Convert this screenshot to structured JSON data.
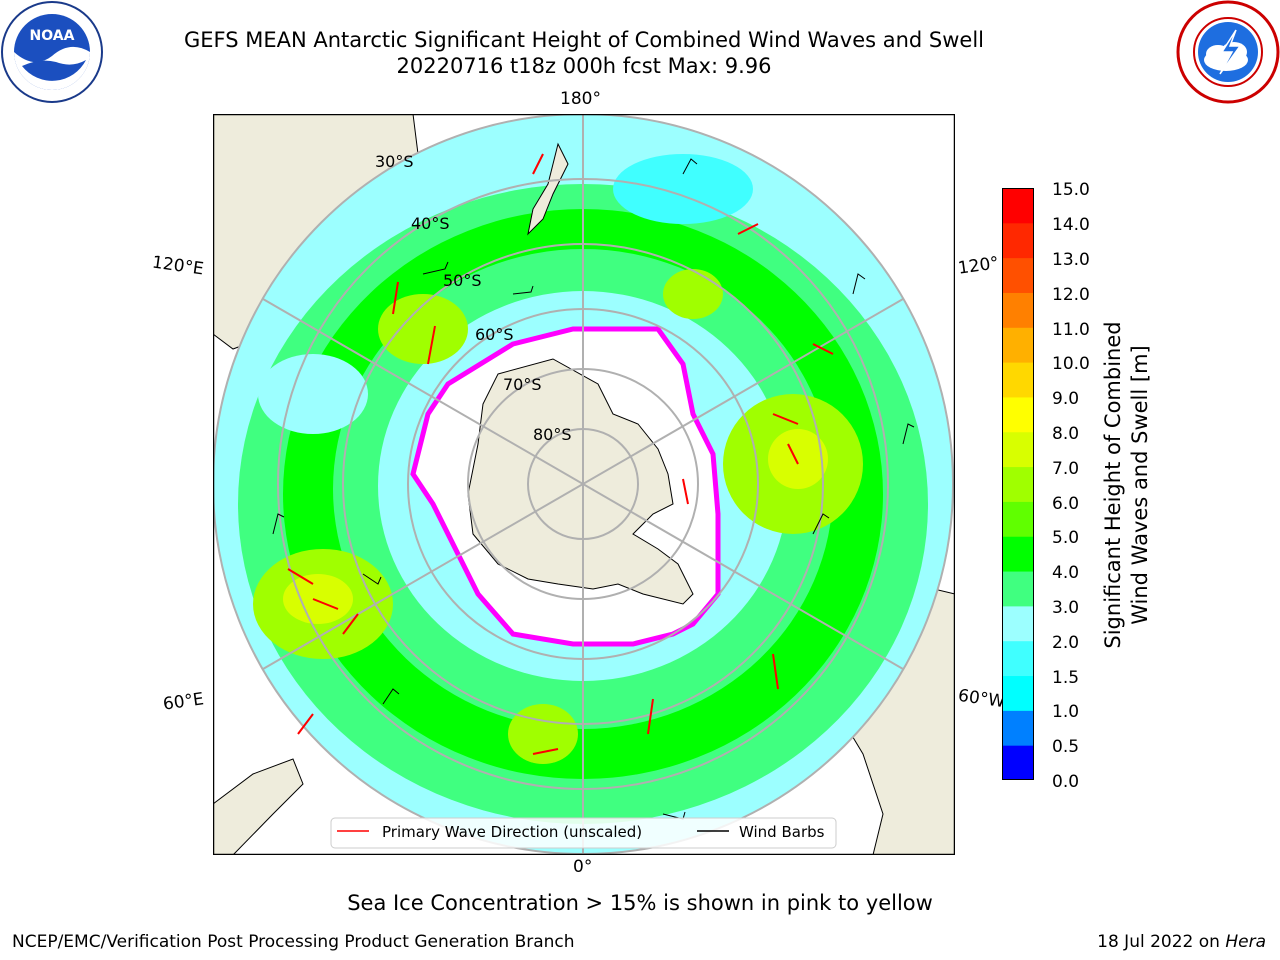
{
  "title_line1": "GEFS MEAN Antarctic Significant Height of Combined Wind Waves and Swell",
  "title_line2": "20220716 t18z 000h fcst   Max: 9.96",
  "longitude_labels": {
    "top": "180°",
    "bottom": "0°",
    "left_upper": "120°E",
    "left_lower": "60°E",
    "right_upper": "120°",
    "right_lower": "60°W"
  },
  "latitude_labels": [
    "30°S",
    "40°S",
    "50°S",
    "60°S",
    "70°S",
    "80°S"
  ],
  "legend": {
    "wave_direction": "Primary Wave Direction (unscaled)",
    "wind_barbs": "Wind Barbs",
    "wave_color": "#ff0000",
    "barb_color": "#000000"
  },
  "colorbar": {
    "label_line1": "Significant Height of Combined",
    "label_line2": "Wind Waves and Swell [m]",
    "ticks": [
      "15.0",
      "14.0",
      "13.0",
      "12.0",
      "11.0",
      "10.0",
      "9.0",
      "8.0",
      "7.0",
      "6.0",
      "5.0",
      "4.0",
      "3.0",
      "2.0",
      "1.5",
      "1.0",
      "0.5",
      "0.0"
    ],
    "colors_bottom_to_top": [
      "#0000ff",
      "#0080ff",
      "#00ffff",
      "#40ffff",
      "#9cffff",
      "#40ff80",
      "#00ff00",
      "#60ff00",
      "#a0ff00",
      "#d8ff00",
      "#ffff00",
      "#ffd800",
      "#ffb000",
      "#ff8000",
      "#ff5000",
      "#ff2800",
      "#ff0000"
    ]
  },
  "caption": "Sea Ice Concentration > 15% is shown in pink to yellow",
  "footer_left": "NCEP/EMC/Verification Post Processing Product Generation Branch",
  "footer_date": "18 Jul 2022 on",
  "footer_host": "Hera",
  "map_colors": {
    "land": "#eeecdc",
    "ice_edge": "#ff00ff",
    "ice_inner": "#ffffff"
  }
}
